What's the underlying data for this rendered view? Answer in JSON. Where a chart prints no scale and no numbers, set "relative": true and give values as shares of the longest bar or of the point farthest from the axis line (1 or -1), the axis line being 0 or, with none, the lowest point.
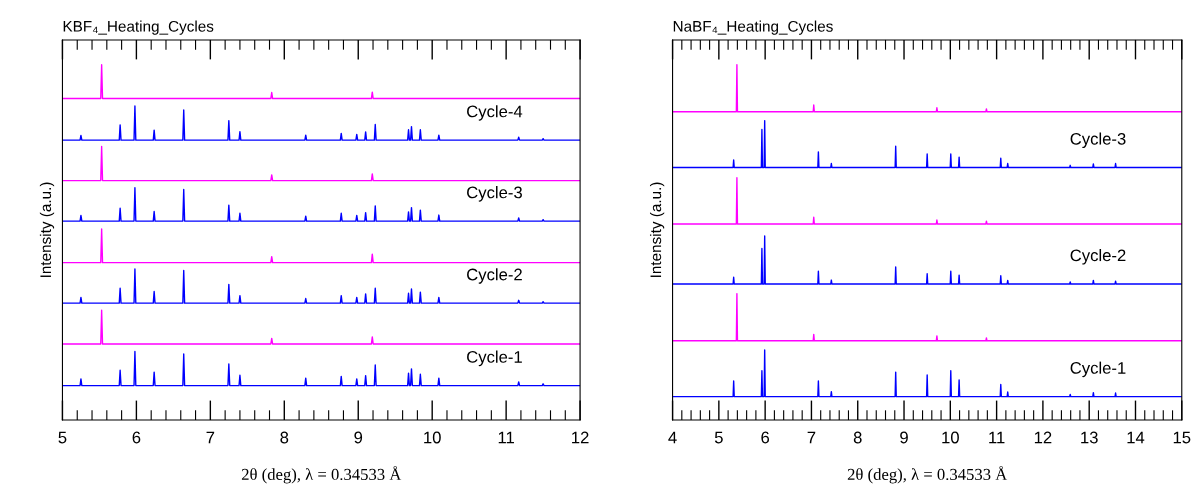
{
  "chart_data": [
    {
      "type": "line",
      "title": "KBF₄_Heating_Cycles",
      "xlabel": "2θ (deg), λ = 0.34533 Å",
      "ylabel": "Intensity (a.u.)",
      "relative": true,
      "tick_labels": "x",
      "xlim": [
        5,
        12
      ],
      "xticks": [
        5,
        {
          "value": 5.2,
          "label": null
        },
        {
          "value": 5.4,
          "label": null
        },
        {
          "value": 5.6,
          "label": null
        },
        {
          "value": 5.8,
          "label": null
        },
        6,
        {
          "value": 6.2,
          "label": null
        },
        {
          "value": 6.4,
          "label": null
        },
        {
          "value": 6.6,
          "label": null
        },
        {
          "value": 6.8,
          "label": null
        },
        7,
        {
          "value": 7.2,
          "label": null
        },
        {
          "value": 7.4,
          "label": null
        },
        {
          "value": 7.6,
          "label": null
        },
        {
          "value": 7.8,
          "label": null
        },
        8,
        {
          "value": 8.2,
          "label": null
        },
        {
          "value": 8.4,
          "label": null
        },
        {
          "value": 8.6,
          "label": null
        },
        {
          "value": 8.8,
          "label": null
        },
        9,
        {
          "value": 9.2,
          "label": null
        },
        {
          "value": 9.4,
          "label": null
        },
        {
          "value": 9.6,
          "label": null
        },
        {
          "value": 9.8,
          "label": null
        },
        10,
        {
          "value": 10.2,
          "label": null
        },
        {
          "value": 10.4,
          "label": null
        },
        {
          "value": 10.6,
          "label": null
        },
        {
          "value": 10.8,
          "label": null
        },
        11,
        {
          "value": 11.2,
          "label": null
        },
        {
          "value": 11.4,
          "label": null
        },
        {
          "value": 11.6,
          "label": null
        },
        {
          "value": 11.8,
          "label": null
        },
        12
      ],
      "x": [
        5,
        5.238,
        5.25,
        5.262,
        5.768,
        5.78,
        5.792,
        5.968,
        5.98,
        5.992,
        6.228,
        6.24,
        6.252,
        6.628,
        6.64,
        6.652,
        7.238,
        7.25,
        7.262,
        7.388,
        7.4,
        7.412,
        8.278,
        8.29,
        8.302,
        8.758,
        8.77,
        8.782,
        8.968,
        8.98,
        8.992,
        9.088,
        9.1,
        9.112,
        9.218,
        9.23,
        9.242,
        9.668,
        9.68,
        9.692,
        9.708,
        9.72,
        9.732,
        9.828,
        9.84,
        9.852,
        10.078,
        10.09,
        10.102,
        11.158,
        11.17,
        11.182,
        11.488,
        11.5,
        11.512,
        12
      ],
      "series": [
        {
          "color": "#ff00ff",
          "x": [
            5,
            5.518,
            5.53,
            5.542,
            7.818,
            7.83,
            7.842,
            9.178,
            9.19,
            9.202,
            12
          ],
          "values": [
            0.905,
            0.905,
            1.0,
            0.905,
            0.905,
            0.922,
            0.905,
            0.905,
            0.923,
            0.905,
            0.905
          ]
        },
        {
          "name": "Cycle-4",
          "color": "#0000ff",
          "values": [
            0.788,
            0.788,
            0.801,
            0.788,
            0.788,
            0.831,
            0.788,
            0.788,
            0.884,
            0.788,
            0.788,
            0.816,
            0.788,
            0.788,
            0.873,
            0.788,
            0.788,
            0.843,
            0.788,
            0.788,
            0.812,
            0.788,
            0.788,
            0.802,
            0.788,
            0.788,
            0.807,
            0.788,
            0.788,
            0.804,
            0.788,
            0.788,
            0.811,
            0.788,
            0.788,
            0.832,
            0.788,
            0.788,
            0.817,
            0.788,
            0.788,
            0.826,
            0.788,
            0.788,
            0.817,
            0.788,
            0.788,
            0.802,
            0.788,
            0.788,
            0.796,
            0.788,
            0.788,
            0.792,
            0.788,
            0.788
          ]
        },
        {
          "color": "#ff00ff",
          "x": [
            5,
            5.518,
            5.53,
            5.542,
            7.818,
            7.83,
            7.842,
            9.178,
            9.19,
            9.202,
            12
          ],
          "values": [
            0.674,
            0.674,
            0.77,
            0.674,
            0.674,
            0.69,
            0.674,
            0.674,
            0.693,
            0.674,
            0.674
          ]
        },
        {
          "name": "Cycle-3",
          "color": "#0000ff",
          "values": [
            0.56,
            0.56,
            0.576,
            0.56,
            0.56,
            0.596,
            0.56,
            0.56,
            0.654,
            0.56,
            0.56,
            0.587,
            0.56,
            0.56,
            0.649,
            0.56,
            0.56,
            0.605,
            0.56,
            0.56,
            0.582,
            0.56,
            0.56,
            0.574,
            0.56,
            0.56,
            0.582,
            0.56,
            0.56,
            0.576,
            0.56,
            0.56,
            0.584,
            0.56,
            0.56,
            0.603,
            0.56,
            0.56,
            0.586,
            0.56,
            0.56,
            0.598,
            0.56,
            0.56,
            0.591,
            0.56,
            0.56,
            0.577,
            0.56,
            0.56,
            0.569,
            0.56,
            0.56,
            0.564,
            0.56,
            0.56
          ]
        },
        {
          "color": "#ff00ff",
          "x": [
            5,
            5.518,
            5.53,
            5.542,
            7.818,
            7.83,
            7.842,
            9.178,
            9.19,
            9.202,
            12
          ],
          "values": [
            0.443,
            0.443,
            0.538,
            0.443,
            0.443,
            0.46,
            0.443,
            0.443,
            0.467,
            0.443,
            0.443
          ]
        },
        {
          "name": "Cycle-2",
          "color": "#0000ff",
          "values": [
            0.329,
            0.329,
            0.345,
            0.329,
            0.329,
            0.371,
            0.329,
            0.329,
            0.425,
            0.329,
            0.329,
            0.362,
            0.329,
            0.329,
            0.421,
            0.329,
            0.329,
            0.382,
            0.329,
            0.329,
            0.35,
            0.329,
            0.329,
            0.342,
            0.329,
            0.329,
            0.35,
            0.329,
            0.329,
            0.345,
            0.329,
            0.329,
            0.355,
            0.329,
            0.329,
            0.371,
            0.329,
            0.329,
            0.357,
            0.329,
            0.329,
            0.369,
            0.329,
            0.329,
            0.36,
            0.329,
            0.329,
            0.345,
            0.329,
            0.329,
            0.337,
            0.329,
            0.329,
            0.333,
            0.329,
            0.329
          ]
        },
        {
          "color": "#ff00ff",
          "x": [
            5,
            5.518,
            5.53,
            5.542,
            7.818,
            7.83,
            7.842,
            9.178,
            9.19,
            9.202,
            12
          ],
          "values": [
            0.214,
            0.214,
            0.309,
            0.214,
            0.214,
            0.23,
            0.214,
            0.214,
            0.234,
            0.214,
            0.214
          ]
        },
        {
          "name": "Cycle-1",
          "color": "#0000ff",
          "values": [
            0.097,
            0.097,
            0.116,
            0.097,
            0.097,
            0.14,
            0.097,
            0.097,
            0.193,
            0.097,
            0.097,
            0.135,
            0.097,
            0.097,
            0.186,
            0.097,
            0.097,
            0.158,
            0.097,
            0.097,
            0.126,
            0.097,
            0.097,
            0.118,
            0.097,
            0.097,
            0.123,
            0.097,
            0.097,
            0.116,
            0.097,
            0.097,
            0.125,
            0.097,
            0.097,
            0.155,
            0.097,
            0.097,
            0.132,
            0.097,
            0.097,
            0.144,
            0.097,
            0.097,
            0.129,
            0.097,
            0.097,
            0.118,
            0.097,
            0.097,
            0.107,
            0.097,
            0.097,
            0.102,
            0.097,
            0.097
          ]
        }
      ]
    },
    {
      "type": "line",
      "title": "NaBF₄_Heating_Cycles",
      "xlabel": "2θ (deg), λ = 0.34533 Å",
      "ylabel": "Intensity (a.u.)",
      "relative": true,
      "tick_labels": "x",
      "xlim": [
        4,
        15
      ],
      "xticks": [
        4,
        {
          "value": 4.2,
          "label": null
        },
        {
          "value": 4.4,
          "label": null
        },
        {
          "value": 4.6,
          "label": null
        },
        {
          "value": 4.8,
          "label": null
        },
        5,
        {
          "value": 5.2,
          "label": null
        },
        {
          "value": 5.4,
          "label": null
        },
        {
          "value": 5.6,
          "label": null
        },
        {
          "value": 5.8,
          "label": null
        },
        6,
        {
          "value": 6.2,
          "label": null
        },
        {
          "value": 6.4,
          "label": null
        },
        {
          "value": 6.6,
          "label": null
        },
        {
          "value": 6.8,
          "label": null
        },
        7,
        {
          "value": 7.2,
          "label": null
        },
        {
          "value": 7.4,
          "label": null
        },
        {
          "value": 7.6,
          "label": null
        },
        {
          "value": 7.8,
          "label": null
        },
        8,
        {
          "value": 8.2,
          "label": null
        },
        {
          "value": 8.4,
          "label": null
        },
        {
          "value": 8.6,
          "label": null
        },
        {
          "value": 8.8,
          "label": null
        },
        9,
        {
          "value": 9.2,
          "label": null
        },
        {
          "value": 9.4,
          "label": null
        },
        {
          "value": 9.6,
          "label": null
        },
        {
          "value": 9.8,
          "label": null
        },
        10,
        {
          "value": 10.2,
          "label": null
        },
        {
          "value": 10.4,
          "label": null
        },
        {
          "value": 10.6,
          "label": null
        },
        {
          "value": 10.8,
          "label": null
        },
        11,
        {
          "value": 11.2,
          "label": null
        },
        {
          "value": 11.4,
          "label": null
        },
        {
          "value": 11.6,
          "label": null
        },
        {
          "value": 11.8,
          "label": null
        },
        12,
        {
          "value": 12.2,
          "label": null
        },
        {
          "value": 12.4,
          "label": null
        },
        {
          "value": 12.6,
          "label": null
        },
        {
          "value": 12.8,
          "label": null
        },
        13,
        {
          "value": 13.2,
          "label": null
        },
        {
          "value": 13.4,
          "label": null
        },
        {
          "value": 13.6,
          "label": null
        },
        {
          "value": 13.8,
          "label": null
        },
        14,
        {
          "value": 14.2,
          "label": null
        },
        {
          "value": 14.4,
          "label": null
        },
        {
          "value": 14.6,
          "label": null
        },
        {
          "value": 14.8,
          "label": null
        },
        15
      ],
      "x": [
        4,
        5.308,
        5.32,
        5.332,
        5.918,
        5.93,
        5.942,
        5.978,
        5.99,
        6.002,
        7.138,
        7.15,
        7.162,
        7.418,
        7.43,
        7.442,
        8.808,
        8.82,
        8.832,
        9.488,
        9.5,
        9.512,
        9.998,
        10.01,
        10.022,
        10.178,
        10.19,
        10.202,
        11.078,
        11.09,
        11.102,
        11.228,
        11.24,
        11.252,
        12.578,
        12.59,
        12.602,
        13.078,
        13.09,
        13.102,
        13.558,
        13.57,
        13.582,
        15
      ],
      "series": [
        {
          "color": "#ff00ff",
          "x": [
            4,
            5.378,
            5.39,
            5.402,
            7.038,
            7.05,
            7.062,
            9.698,
            9.71,
            9.722,
            10.768,
            10.78,
            10.792,
            15
          ],
          "values": [
            0.868,
            0.868,
            1.0,
            0.868,
            0.868,
            0.887,
            0.868,
            0.868,
            0.879,
            0.868,
            0.868,
            0.876,
            0.868,
            0.868
          ]
        },
        {
          "name": "Cycle-3",
          "color": "#0000ff",
          "values": [
            0.711,
            0.711,
            0.732,
            0.711,
            0.711,
            0.818,
            0.711,
            0.711,
            0.843,
            0.711,
            0.711,
            0.755,
            0.711,
            0.711,
            0.722,
            0.711,
            0.711,
            0.771,
            0.711,
            0.711,
            0.749,
            0.711,
            0.711,
            0.749,
            0.711,
            0.711,
            0.74,
            0.711,
            0.711,
            0.737,
            0.711,
            0.711,
            0.722,
            0.711,
            0.711,
            0.717,
            0.711,
            0.711,
            0.721,
            0.711,
            0.711,
            0.722,
            0.711,
            0.711
          ]
        },
        {
          "color": "#ff00ff",
          "x": [
            4,
            5.378,
            5.39,
            5.402,
            7.038,
            7.05,
            7.062,
            9.698,
            9.71,
            9.722,
            10.768,
            10.78,
            10.792,
            15
          ],
          "values": [
            0.552,
            0.552,
            0.682,
            0.552,
            0.552,
            0.571,
            0.552,
            0.552,
            0.563,
            0.552,
            0.552,
            0.56,
            0.552,
            0.552
          ]
        },
        {
          "name": "Cycle-2",
          "color": "#0000ff",
          "values": [
            0.383,
            0.383,
            0.402,
            0.383,
            0.383,
            0.483,
            0.383,
            0.383,
            0.518,
            0.383,
            0.383,
            0.419,
            0.383,
            0.383,
            0.394,
            0.383,
            0.383,
            0.431,
            0.383,
            0.383,
            0.412,
            0.383,
            0.383,
            0.419,
            0.383,
            0.383,
            0.408,
            0.383,
            0.383,
            0.406,
            0.383,
            0.383,
            0.393,
            0.383,
            0.383,
            0.389,
            0.383,
            0.383,
            0.393,
            0.383,
            0.383,
            0.391,
            0.383,
            0.383
          ]
        },
        {
          "color": "#ff00ff",
          "x": [
            4,
            5.378,
            5.39,
            5.402,
            7.038,
            7.05,
            7.062,
            9.698,
            9.71,
            9.722,
            10.768,
            10.78,
            10.792,
            15
          ],
          "values": [
            0.223,
            0.223,
            0.356,
            0.223,
            0.223,
            0.241,
            0.223,
            0.223,
            0.237,
            0.223,
            0.223,
            0.231,
            0.223,
            0.223
          ]
        },
        {
          "name": "Cycle-1",
          "color": "#0000ff",
          "values": [
            0.066,
            0.066,
            0.11,
            0.066,
            0.066,
            0.139,
            0.066,
            0.066,
            0.197,
            0.066,
            0.066,
            0.11,
            0.066,
            0.066,
            0.08,
            0.066,
            0.066,
            0.135,
            0.066,
            0.066,
            0.127,
            0.066,
            0.066,
            0.139,
            0.066,
            0.066,
            0.113,
            0.066,
            0.066,
            0.1,
            0.066,
            0.066,
            0.079,
            0.066,
            0.066,
            0.072,
            0.066,
            0.066,
            0.077,
            0.066,
            0.066,
            0.076,
            0.066,
            0.066
          ]
        }
      ]
    }
  ]
}
